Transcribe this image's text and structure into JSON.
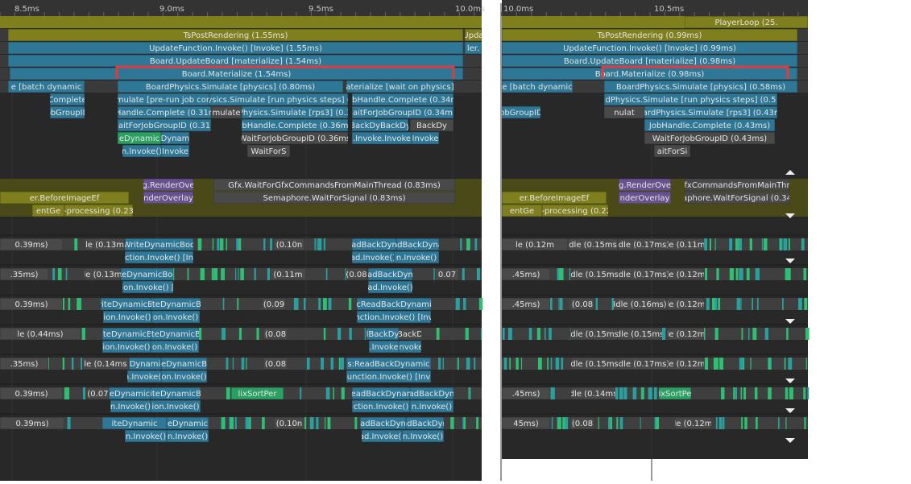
{
  "left": {
    "ruler": [
      "8.5ms",
      "9.0ms",
      "9.5ms",
      "10.0ms"
    ],
    "bars": [
      "TsPostRendering (1.55ms)",
      "Upda",
      "UpdateFunction.Invoke() [Invoke] (1.55ms)",
      "ler.",
      "Board.UpdateBoard [materialize] (1.54ms)",
      "Board.Materialize (1.54ms)",
      "e [batch dynamic",
      "BoardPhysics.Simulate [physics] (0.80ms)",
      "aterialize [wait on physics]",
      "Complete",
      "mulate [pre-run job con",
      "ysics.Simulate [run physics steps] (",
      "obHandle.Complete (0.34m",
      "obGroupID",
      "Handle.Complete (0.31n",
      "mulate",
      "Physics.Simulate [rps3] (0.3",
      "aitForJobGroupID (0.34m",
      "aitForJobGroupID (0.31",
      "obHandle.Complete (0.36ms",
      "BackDyBackDy",
      "BackDy",
      "eDynamic",
      "Dynam",
      "WaitForJobGroupID (0.36ms",
      ".Invoke.Invoke",
      "Invoke",
      "n.Invoke()",
      "Invoke",
      "WaitForS",
      "g.RenderOve",
      "Gfx.WaitForGfxCommandsFromMainThread (0.83ms)",
      "er.BeforeImageEf",
      "nderOverlay",
      "Semaphore.WaitForSignal (0.83ms)",
      "entGe",
      "-processing (0.23",
      "0.39ms)",
      "le (0.13m",
      "WriteDynamicBod",
      "(0.10n",
      "adBackDyn",
      "adBackDyna",
      "ction.Invoke() [In",
      "ad.Invoke()",
      "n.Invoke()",
      ".35ms)",
      "le (0.13m",
      "iteDynamicBod",
      "(0.11m",
      "(0.08",
      "adBackDyn",
      "0.07",
      "ion.Invoke() [",
      "ad.Invoke()",
      "0.39ms)",
      "riteDynamicB",
      "iteDynamicB",
      "(0.09",
      "cReadBackDynami",
      "ion.Invoke()",
      "on.Invoke()",
      "nction.Invoke() [Inv",
      "le (0.44ms)",
      "iteDynamicB",
      "iteDynamicB",
      "(0.08",
      "lBackDy",
      "BackD",
      "ion.Invoke()",
      "on.Invoke()",
      ".Invoke",
      "Invoke",
      ".35ms)",
      "le (0.14ms",
      "Dynami",
      "eDynamicB",
      "(0.08",
      "s:ReadBackDynamic",
      "n.Invoke()",
      "on.Invoke()",
      "unction.Invoke() [Inv",
      "0.39ms)",
      "(0.07",
      "eDynamic",
      "iteDynamicB",
      "lixSortPer",
      "readBackDynam",
      "adBackDyn",
      "n.Invoke()",
      "ion.Invoke()",
      "ction.Invoke()",
      "n.Invoke()",
      "0.39ms)",
      "iteDynamic",
      "eDynamic",
      "(0.10n",
      "adBackDyn",
      "adBackDyn",
      "n.Invoke()",
      "n.Invoke()",
      "ad.Invoke()",
      "n.Invoke()"
    ]
  },
  "right": {
    "ruler": [
      "10.0ms",
      "10.5ms"
    ],
    "bars": [
      "PlayerLoop (25.",
      "TsPostRendering (0.99ms)",
      "UpdateFunction.Invoke() [Invoke] (0.99ms)",
      "Board.UpdateBoard [materialize] (0.98ms)",
      "Board.Materialize (0.98ms)",
      "e [batch dynamic",
      "BoardPhysics.Simulate [physics] (0.58ms)",
      "dPhysics.Simulate [run physics steps] (0.5",
      "nulat",
      "ardPhysics.Simulate [rps3] (0.43n",
      "obGroupID",
      "JobHandle.Complete (0.43ms)",
      "WaitForJobGroupID (0.43ms)",
      "aitForSi",
      "g.RenderOve",
      "fxCommandsFromMainThr",
      "er.BeforeImageEf",
      "nderOverlay",
      "aphore.WaitForSignal (0.34",
      "entGe",
      ":-processing (0.22",
      "le (0.12m",
      "dle (0.15ms",
      "Idle (0.17ms)",
      "le (0.11m",
      ".45ms)",
      "dle (0.15ms",
      "Idle (0.17ms)",
      "le (0.12m",
      ".45ms)",
      "(0.08",
      "Idle (0.16ms)",
      "le (0.12m",
      "dle (0.15ms",
      "dle (0.15ms",
      "le (0.12m",
      "dle (0.15ms",
      "Idle (0.17ms)",
      "le (0.12m",
      ".45ms)",
      "dle (0.14ms",
      "ixSortPe",
      "45ms)",
      "(0.08",
      "le (0.12m"
    ]
  }
}
